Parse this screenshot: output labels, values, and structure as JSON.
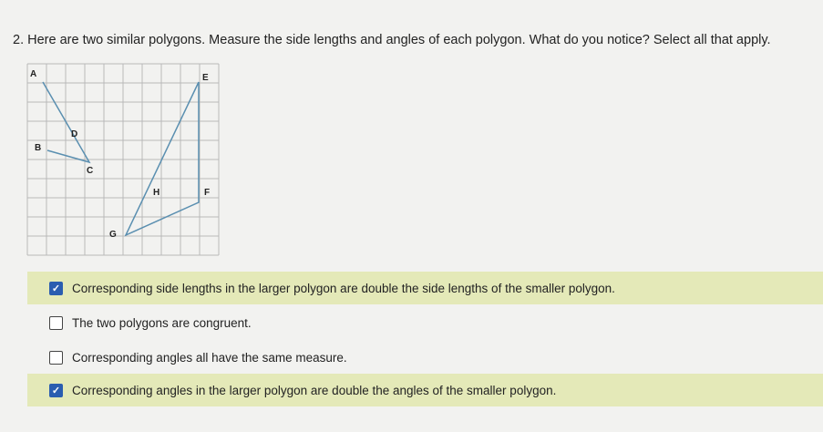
{
  "question": {
    "number": "2.",
    "text": "Here are two similar polygons. Measure the side lengths and angles of each polygon. What do you notice? Select all that apply."
  },
  "figure": {
    "labels": [
      "A",
      "B",
      "C",
      "D",
      "E",
      "F",
      "G",
      "H"
    ]
  },
  "options": [
    {
      "text": "Corresponding side lengths in the larger polygon are double the side lengths of the smaller polygon.",
      "checked": true
    },
    {
      "text": "The two polygons are congruent.",
      "checked": false
    },
    {
      "text": "Corresponding angles all have the same measure.",
      "checked": false
    },
    {
      "text": "Corresponding angles in the larger polygon are double the angles of the smaller polygon.",
      "checked": true
    }
  ]
}
